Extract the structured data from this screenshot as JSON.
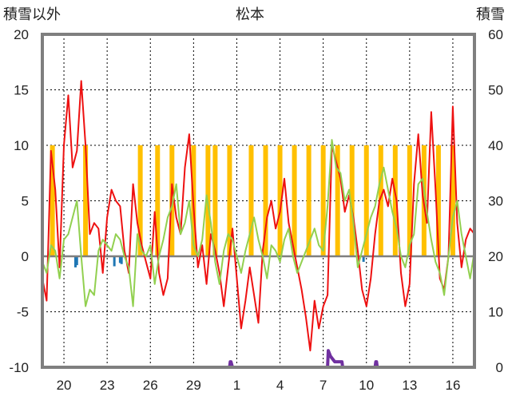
{
  "chart_data": {
    "type": "line",
    "title": "松本",
    "left_axis": {
      "label": "積雪以外",
      "ylim": [
        -10,
        20
      ],
      "ticks": [
        "20",
        "15",
        "10",
        "5",
        "0",
        "-5",
        "-10"
      ]
    },
    "right_axis": {
      "label": "積雪",
      "ylim": [
        0,
        60
      ],
      "ticks": [
        "60",
        "50",
        "40",
        "30",
        "20",
        "10",
        "0"
      ]
    },
    "x_axis": {
      "day_range": [
        0,
        30
      ],
      "tick_labels": [
        "20",
        "23",
        "26",
        "29",
        "1",
        "4",
        "7",
        "10",
        "13",
        "16"
      ],
      "tick_days": [
        1.5,
        4.5,
        7.5,
        10.5,
        13.5,
        16.5,
        19.5,
        22.5,
        25.5,
        28.5
      ]
    },
    "grid": true,
    "colors": {
      "red": "#ee1111",
      "green": "#92d050",
      "orange": "#ffc000",
      "blue": "#1f77b4",
      "purple": "#7030a0",
      "frame": "#7f7f7f"
    },
    "orange_bars": {
      "value": 10,
      "days": [
        0.7,
        3.0,
        6.8,
        8.0,
        9.0,
        10.5,
        11.5,
        12.0,
        13.0,
        14.5,
        15.5,
        16.5,
        17.5,
        18.5,
        19.5,
        20.5,
        21.5,
        22.5,
        23.5,
        24.5,
        25.5,
        26.5,
        27.5,
        28.5
      ]
    },
    "blue_bars": {
      "days": [
        2.3,
        2.4,
        5.0,
        5.4,
        5.5,
        22.3
      ],
      "values": [
        -1.0,
        -0.8,
        -0.9,
        -0.6,
        -0.7,
        -0.5
      ]
    },
    "series": [
      {
        "color": "red",
        "x": [
          0,
          0.3,
          0.6,
          0.9,
          1.2,
          1.5,
          1.8,
          2.1,
          2.4,
          2.7,
          3.0,
          3.3,
          3.6,
          3.9,
          4.2,
          4.5,
          4.8,
          5.1,
          5.4,
          5.7,
          6.0,
          6.3,
          6.6,
          6.9,
          7.2,
          7.5,
          7.8,
          8.1,
          8.4,
          8.7,
          9.0,
          9.3,
          9.6,
          9.9,
          10.2,
          10.5,
          10.8,
          11.1,
          11.4,
          11.7,
          12.0,
          12.3,
          12.6,
          12.9,
          13.2,
          13.5,
          13.8,
          14.1,
          14.4,
          14.7,
          15.0,
          15.3,
          15.6,
          15.9,
          16.2,
          16.5,
          16.8,
          17.1,
          17.4,
          17.7,
          18.0,
          18.3,
          18.6,
          18.9,
          19.2,
          19.5,
          19.8,
          20.1,
          20.4,
          20.7,
          21.0,
          21.3,
          21.6,
          21.9,
          22.2,
          22.5,
          22.8,
          23.1,
          23.4,
          23.7,
          24.0,
          24.3,
          24.6,
          24.9,
          25.2,
          25.5,
          25.8,
          26.1,
          26.4,
          26.7,
          27.0,
          27.3,
          27.6,
          27.9,
          28.2,
          28.5,
          28.8,
          29.1,
          29.4,
          29.7,
          30.0
        ],
        "values": [
          -2.0,
          -4.0,
          9.5,
          6.0,
          -1.0,
          10.0,
          14.5,
          8.0,
          9.5,
          15.8,
          10.0,
          2.0,
          3.0,
          2.5,
          -1.5,
          3.5,
          6.0,
          5.0,
          4.5,
          0.5,
          -1.5,
          6.5,
          3.0,
          1.0,
          -0.5,
          -2.0,
          4.0,
          -1.5,
          -3.5,
          -2.0,
          6.5,
          3.5,
          2.0,
          8.0,
          11.0,
          4.5,
          -1.0,
          1.0,
          -2.5,
          2.0,
          0.5,
          -1.5,
          -4.5,
          -1.0,
          2.5,
          -2.0,
          -6.5,
          -4.0,
          -1.0,
          -3.5,
          -6.0,
          0.5,
          3.5,
          5.0,
          2.5,
          4.0,
          7.0,
          3.0,
          1.0,
          -1.0,
          -3.0,
          -5.5,
          -8.5,
          -4.0,
          -6.5,
          -4.5,
          -3.5,
          10.0,
          8.5,
          7.0,
          4.0,
          5.5,
          3.5,
          0.5,
          -3.0,
          -4.5,
          -2.0,
          2.0,
          5.0,
          6.0,
          4.5,
          7.0,
          5.0,
          -1.5,
          -4.5,
          -2.5,
          6.5,
          11.0,
          5.5,
          3.0,
          13.0,
          6.0,
          -2.0,
          -3.0,
          0.0,
          13.5,
          3.0,
          -1.0,
          1.5,
          2.5,
          2.0
        ]
      },
      {
        "color": "green",
        "x": [
          0,
          0.3,
          0.6,
          0.9,
          1.2,
          1.5,
          1.8,
          2.1,
          2.4,
          2.7,
          3.0,
          3.3,
          3.6,
          3.9,
          4.2,
          4.5,
          4.8,
          5.1,
          5.4,
          5.7,
          6.0,
          6.3,
          6.6,
          6.9,
          7.2,
          7.5,
          7.8,
          8.1,
          8.4,
          8.7,
          9.0,
          9.3,
          9.6,
          9.9,
          10.2,
          10.5,
          10.8,
          11.1,
          11.4,
          11.7,
          12.0,
          12.3,
          12.6,
          12.9,
          13.2,
          13.5,
          13.8,
          14.1,
          14.4,
          14.7,
          15.0,
          15.3,
          15.6,
          15.9,
          16.2,
          16.5,
          16.8,
          17.1,
          17.4,
          17.7,
          18.0,
          18.3,
          18.6,
          18.9,
          19.2,
          19.5,
          19.8,
          20.1,
          20.4,
          20.7,
          21.0,
          21.3,
          21.6,
          21.9,
          22.2,
          22.5,
          22.8,
          23.1,
          23.4,
          23.7,
          24.0,
          24.3,
          24.6,
          24.9,
          25.2,
          25.5,
          25.8,
          26.1,
          26.4,
          26.7,
          27.0,
          27.3,
          27.6,
          27.9,
          28.2,
          28.5,
          28.8,
          29.1,
          29.4,
          29.7,
          30.0
        ],
        "values": [
          -0.5,
          -1.5,
          1.0,
          0.5,
          -2.0,
          1.5,
          2.0,
          3.5,
          5.0,
          0.0,
          -4.5,
          -3.0,
          -3.5,
          0.5,
          1.5,
          1.0,
          0.5,
          2.0,
          1.5,
          0.0,
          -1.0,
          -4.5,
          2.0,
          0.5,
          0.0,
          1.0,
          -2.5,
          0.0,
          1.5,
          3.5,
          4.5,
          6.5,
          2.0,
          3.0,
          5.0,
          1.0,
          0.0,
          1.5,
          5.5,
          3.0,
          -0.5,
          -2.5,
          0.5,
          2.0,
          1.5,
          0.0,
          -1.5,
          0.5,
          2.0,
          3.5,
          1.5,
          0.0,
          -2.0,
          1.0,
          0.5,
          -0.5,
          1.5,
          2.5,
          0.0,
          -1.5,
          -0.5,
          0.5,
          1.5,
          2.5,
          1.0,
          0.5,
          4.5,
          10.5,
          8.0,
          7.5,
          5.0,
          6.0,
          3.0,
          -1.0,
          0.5,
          2.0,
          3.5,
          4.5,
          6.5,
          8.0,
          6.0,
          4.0,
          2.5,
          0.0,
          -1.0,
          1.0,
          2.0,
          6.5,
          7.0,
          4.0,
          1.5,
          -0.5,
          -1.5,
          -3.5,
          0.0,
          3.5,
          5.0,
          2.0,
          0.0,
          -2.0,
          0.5
        ]
      },
      {
        "color": "purple",
        "axis": "right",
        "x": [
          0,
          13.0,
          13.05,
          13.1,
          13.2,
          13.25,
          19.8,
          19.85,
          20.0,
          20.3,
          20.8,
          20.85,
          23.1,
          23.15,
          23.2,
          23.25,
          30.0
        ],
        "values": [
          0,
          0,
          1,
          1,
          0,
          0,
          0,
          3,
          2,
          1,
          1,
          0,
          0,
          1,
          1,
          0,
          0
        ]
      }
    ]
  }
}
